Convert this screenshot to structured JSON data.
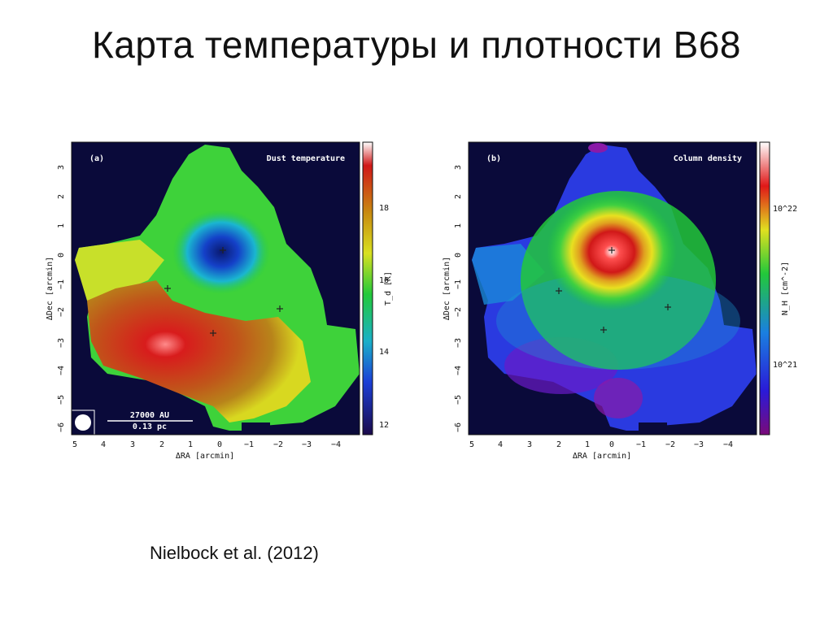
{
  "slide": {
    "title": "Карта температуры и плотности B68",
    "citation": "Nielbock et al. (2012)"
  },
  "colors": {
    "background": "#ffffff",
    "map_background": "#0a0a3a"
  },
  "panels": [
    {
      "id": "a",
      "tag": "(a)",
      "name": "Dust temperature",
      "xlabel": "ΔRA [arcmin]",
      "ylabel": "ΔDec [arcmin]",
      "x_ticks": [
        "5",
        "4",
        "3",
        "2",
        "1",
        "0",
        "−1",
        "−2",
        "−3",
        "−4"
      ],
      "y_ticks": [
        "3",
        "2",
        "1",
        "0",
        "−1",
        "−2",
        "−3",
        "−4",
        "−5",
        "−6"
      ],
      "colorbar_label": "T_d [K]",
      "colorbar_ticks": [
        "18",
        "16",
        "14",
        "12"
      ],
      "scalebar": [
        "27000 AU",
        "0.13 pc"
      ]
    },
    {
      "id": "b",
      "tag": "(b)",
      "name": "Column density",
      "xlabel": "ΔRA [arcmin]",
      "ylabel": "ΔDec [arcmin]",
      "x_ticks": [
        "5",
        "4",
        "3",
        "2",
        "1",
        "0",
        "−1",
        "−2",
        "−3",
        "−4"
      ],
      "y_ticks": [
        "3",
        "2",
        "1",
        "0",
        "−1",
        "−2",
        "−3",
        "−4",
        "−5",
        "−6"
      ],
      "colorbar_label": "N_H [cm^-2]",
      "colorbar_ticks": [
        "10^22",
        "10^21"
      ]
    }
  ]
}
